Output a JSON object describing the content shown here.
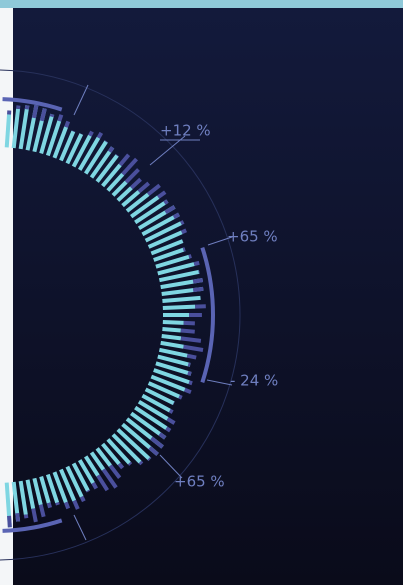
{
  "labels": [
    "+12 %",
    "+65 %",
    "- 24 %",
    "+65 %"
  ]
}
